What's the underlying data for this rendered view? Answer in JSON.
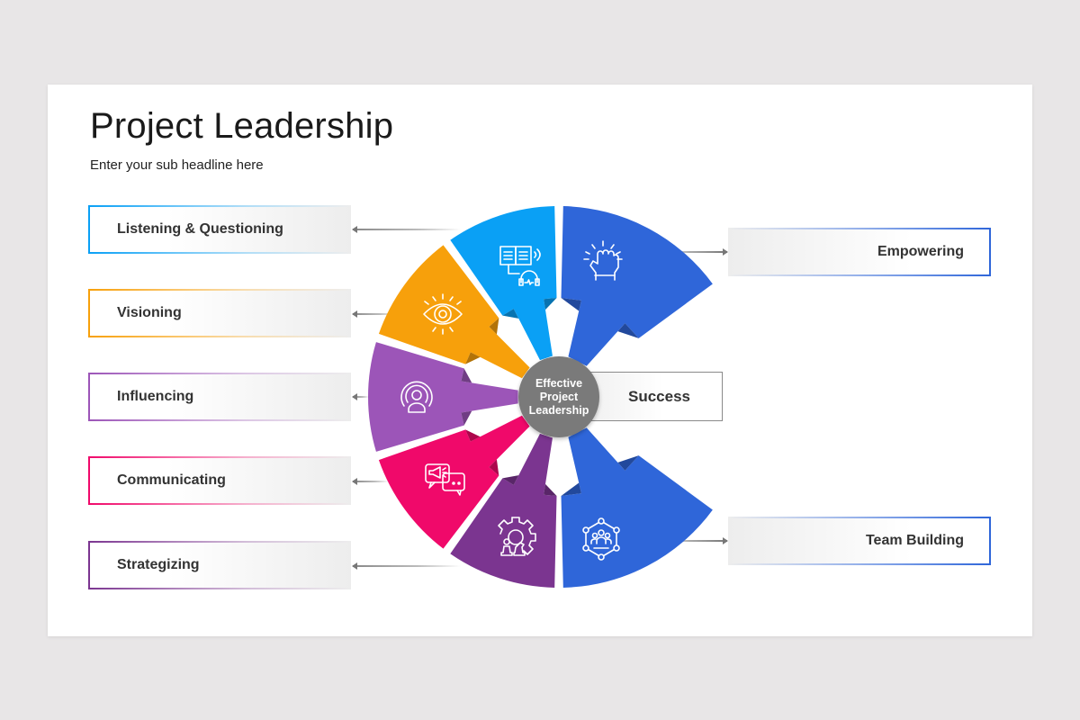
{
  "slide": {
    "title": "Project Leadership",
    "subtitle": "Enter your sub headline here"
  },
  "center": {
    "line1": "Effective",
    "line2": "Project",
    "line3": "Leadership",
    "color": "#7a7a7a"
  },
  "success": {
    "label": "Success"
  },
  "left_items": [
    {
      "label": "Listening & Questioning",
      "color": "#0aa0f5",
      "icon": "book-headphones-icon"
    },
    {
      "label": "Visioning",
      "color": "#f7a00b",
      "icon": "eye-icon"
    },
    {
      "label": "Influencing",
      "color": "#9c55b8",
      "icon": "broadcast-person-icon"
    },
    {
      "label": "Communicating",
      "color": "#f0096a",
      "icon": "megaphone-chat-icon"
    },
    {
      "label": "Strategizing",
      "color": "#7b3590",
      "icon": "gear-chess-icon"
    }
  ],
  "right_items": [
    {
      "label": "Empowering",
      "color": "#2f66d9",
      "icon": "raised-fist-icon"
    },
    {
      "label": "Team Building",
      "color": "#2f66d9",
      "icon": "team-network-icon"
    }
  ]
}
